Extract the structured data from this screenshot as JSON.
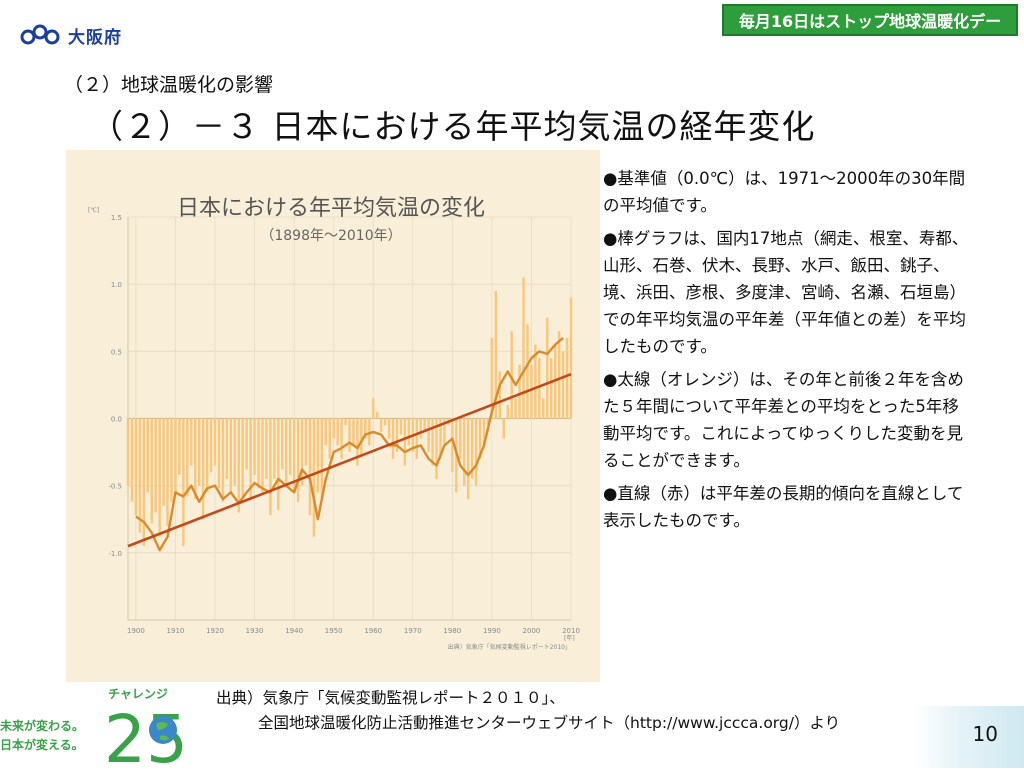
{
  "header": {
    "logo_text": "大阪府",
    "banner_text": "毎月16日はストップ地球温暖化デー"
  },
  "section_heading": "（２）地球温暖化の影響",
  "slide_title": "（２）－３ 日本における年平均気温の経年変化",
  "chart_data": {
    "type": "bar",
    "title": "日本における年平均気温の変化",
    "subtitle": "（1898年～2010年）",
    "unit_label": "[℃]",
    "year_unit_label": "[年]",
    "credit": "出典）気象庁「気候変動監視レポート2010」",
    "x_ticks": [
      "1900",
      "1910",
      "1920",
      "1930",
      "1940",
      "1950",
      "1960",
      "1970",
      "1980",
      "1990",
      "2000",
      "2010"
    ],
    "y_ticks": [
      "1.5",
      "1.0",
      "0.5",
      "0.0",
      "-0.5",
      "-1.0"
    ],
    "ylim": [
      -1.5,
      1.5
    ],
    "xlim": [
      1898,
      2010
    ],
    "grid": true,
    "series": [
      {
        "kind": "bar",
        "x": [
          1898,
          1899,
          1900,
          1901,
          1902,
          1903,
          1904,
          1905,
          1906,
          1907,
          1908,
          1909,
          1910,
          1911,
          1912,
          1913,
          1914,
          1915,
          1916,
          1917,
          1918,
          1919,
          1920,
          1921,
          1922,
          1923,
          1924,
          1925,
          1926,
          1927,
          1928,
          1929,
          1930,
          1931,
          1932,
          1933,
          1934,
          1935,
          1936,
          1937,
          1938,
          1939,
          1940,
          1941,
          1942,
          1943,
          1944,
          1945,
          1946,
          1947,
          1948,
          1949,
          1950,
          1951,
          1952,
          1953,
          1954,
          1955,
          1956,
          1957,
          1958,
          1959,
          1960,
          1961,
          1962,
          1963,
          1964,
          1965,
          1966,
          1967,
          1968,
          1969,
          1970,
          1971,
          1972,
          1973,
          1974,
          1975,
          1976,
          1977,
          1978,
          1979,
          1980,
          1981,
          1982,
          1983,
          1984,
          1985,
          1986,
          1987,
          1988,
          1989,
          1990,
          1991,
          1992,
          1993,
          1994,
          1995,
          1996,
          1997,
          1998,
          1999,
          2000,
          2001,
          2002,
          2003,
          2004,
          2005,
          2006,
          2007,
          2008,
          2009,
          2010
        ],
        "values": [
          -0.5,
          -0.62,
          -0.72,
          -0.85,
          -0.95,
          -0.55,
          -0.78,
          -0.7,
          -0.88,
          -0.65,
          -0.8,
          -0.62,
          -0.55,
          -0.42,
          -0.95,
          -0.58,
          -0.35,
          -0.6,
          -0.5,
          -0.75,
          -0.55,
          -0.4,
          -0.35,
          -0.52,
          -0.62,
          -0.45,
          -0.55,
          -0.5,
          -0.7,
          -0.58,
          -0.38,
          -0.6,
          -0.42,
          -0.52,
          -0.55,
          -0.45,
          -0.72,
          -0.45,
          -0.68,
          -0.38,
          -0.5,
          -0.42,
          -0.55,
          -0.62,
          -0.5,
          -0.35,
          -0.72,
          -0.88,
          -0.55,
          -0.6,
          -0.2,
          -0.3,
          -0.15,
          -0.2,
          -0.3,
          -0.05,
          -0.25,
          -0.2,
          -0.35,
          -0.28,
          -0.15,
          -0.2,
          0.15,
          0.05,
          -0.1,
          -0.05,
          -0.15,
          -0.3,
          -0.25,
          -0.12,
          -0.35,
          -0.2,
          -0.25,
          -0.3,
          -0.15,
          -0.1,
          -0.25,
          -0.35,
          -0.45,
          -0.3,
          -0.2,
          -0.05,
          -0.4,
          -0.55,
          -0.3,
          -0.5,
          -0.6,
          -0.45,
          -0.5,
          -0.3,
          -0.2,
          -0.05,
          0.6,
          0.95,
          0.35,
          -0.15,
          0.1,
          0.65,
          0.15,
          0.4,
          1.05,
          0.7,
          0.4,
          0.55,
          0.45,
          0.15,
          0.75,
          0.45,
          0.55,
          0.65,
          0.5,
          0.6,
          0.9
        ]
      },
      {
        "kind": "line",
        "name": "5年移動平均",
        "color": "#d98a2b",
        "x": [
          1900,
          1902,
          1904,
          1906,
          1908,
          1910,
          1912,
          1914,
          1916,
          1918,
          1920,
          1922,
          1924,
          1926,
          1928,
          1930,
          1932,
          1934,
          1936,
          1938,
          1940,
          1942,
          1944,
          1946,
          1948,
          1950,
          1952,
          1954,
          1956,
          1958,
          1960,
          1962,
          1964,
          1966,
          1968,
          1970,
          1972,
          1974,
          1976,
          1978,
          1980,
          1982,
          1984,
          1986,
          1988,
          1990,
          1992,
          1994,
          1996,
          1998,
          2000,
          2002,
          2004,
          2006,
          2008
        ],
        "values": [
          -0.73,
          -0.77,
          -0.85,
          -0.98,
          -0.88,
          -0.55,
          -0.58,
          -0.5,
          -0.62,
          -0.52,
          -0.5,
          -0.6,
          -0.55,
          -0.63,
          -0.55,
          -0.48,
          -0.52,
          -0.55,
          -0.45,
          -0.5,
          -0.55,
          -0.38,
          -0.45,
          -0.75,
          -0.45,
          -0.25,
          -0.22,
          -0.18,
          -0.22,
          -0.12,
          -0.1,
          -0.12,
          -0.2,
          -0.2,
          -0.25,
          -0.22,
          -0.2,
          -0.3,
          -0.35,
          -0.2,
          -0.15,
          -0.35,
          -0.42,
          -0.35,
          -0.2,
          0.05,
          0.25,
          0.35,
          0.25,
          0.35,
          0.45,
          0.5,
          0.48,
          0.55,
          0.6
        ]
      },
      {
        "kind": "trend",
        "name": "長期的傾向",
        "color": "#c24a1a",
        "x": [
          1898,
          2010
        ],
        "values": [
          -0.95,
          0.33
        ]
      }
    ]
  },
  "description": [
    "●基準値（0.0℃）は、1971～2000年の30年間の平均値です。",
    "●棒グラフは、国内17地点（網走、根室、寿都、山形、石巻、伏木、長野、水戸、飯田、銚子、境、浜田、彦根、多度津、宮崎、名瀬、石垣島）での年平均気温の平年差（平年値との差）を平均したものです。",
    "●太線（オレンジ）は、その年と前後２年を含めた５年間について平年差との平均をとった5年移動平均です。これによってゆっくりした変動を見ることができます。",
    "●直線（赤）は平年差の長期的傾向を直線として表示したものです。"
  ],
  "source": {
    "line1": "出典）気象庁「気候変動監視レポート２０１０」、",
    "line2": "全国地球温暖化防止活動推進センターウェブサイト（http://www.jccca.org/）より"
  },
  "challenge_logo": {
    "label": "チャレンジ",
    "number": "25",
    "slogan1": "未来が変わる。",
    "slogan2": "日本が変える。"
  },
  "page_number": "10",
  "colors": {
    "bar": "#f7c77e",
    "moving_average": "#d98a2b",
    "trend": "#c24a1a",
    "banner": "#2e9d3c",
    "chart_bg": "#f9efd9"
  }
}
